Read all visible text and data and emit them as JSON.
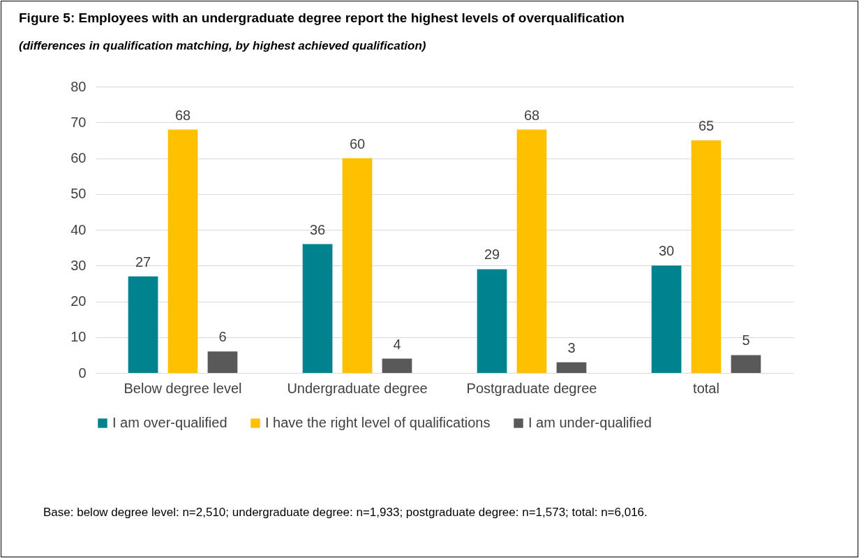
{
  "chart_data": {
    "type": "bar",
    "title": "Figure 5: Employees with an undergraduate degree report the highest levels of overqualification",
    "subtitle": "(differences in qualification matching, by highest achieved qualification)",
    "categories": [
      "Below degree level",
      "Undergraduate degree",
      "Postgraduate degree",
      "total"
    ],
    "series": [
      {
        "name": "I am over-qualified",
        "color": "#00838f",
        "values": [
          27,
          36,
          29,
          30
        ]
      },
      {
        "name": "I have the right level of qualifications",
        "color": "#ffc000",
        "values": [
          68,
          60,
          68,
          65
        ]
      },
      {
        "name": "I am under-qualified",
        "color": "#595959",
        "values": [
          6,
          4,
          3,
          5
        ]
      }
    ],
    "ylim": [
      0,
      80
    ],
    "yticks": [
      0,
      10,
      20,
      30,
      40,
      50,
      60,
      70,
      80
    ],
    "grid": "y",
    "legend": "bottom",
    "data_labels": true,
    "annotations": [
      "Base: below degree level: n=2,510; undergraduate degree: n=1,933; postgraduate degree: n=1,573; total: n=6,016."
    ]
  }
}
